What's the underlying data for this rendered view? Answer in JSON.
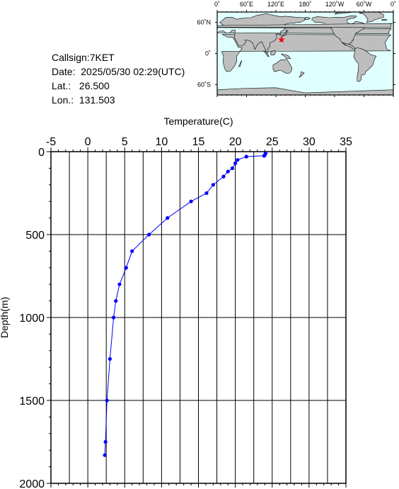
{
  "station": {
    "callsign_label": "Callsign:",
    "callsign": "7KET",
    "date_label": "Date:",
    "date": "2025/05/30 02:29(UTC)",
    "lat_label": "Lat.:",
    "lat": "26.500",
    "lon_label": "Lon.:",
    "lon": "131.503"
  },
  "map": {
    "lon_labels": [
      "0˚",
      "60˚E",
      "120˚E",
      "180˚",
      "120˚W",
      "60˚W",
      "0˚"
    ],
    "lat_labels": [
      "60˚N",
      "0˚",
      "60˚S"
    ],
    "marker": {
      "lon": 131.503,
      "lat": 26.5
    },
    "colors": {
      "ocean": "#e0ffff",
      "land": "#bebebe",
      "marker": "#ff0000"
    }
  },
  "chart_data": {
    "type": "line",
    "xlabel": "Temperature(C)",
    "ylabel": "Depth(m)",
    "xlim": [
      -5,
      35
    ],
    "ylim": [
      2000,
      0
    ],
    "x_ticks": [
      "-5",
      "0",
      "5",
      "10",
      "15",
      "20",
      "25",
      "30",
      "35"
    ],
    "y_ticks": [
      "0",
      "500",
      "1000",
      "1500",
      "2000"
    ],
    "x_axis_position": "top",
    "grid": true,
    "line_color": "#0000ff",
    "series": [
      {
        "temperature": [
          24.1,
          24.0,
          23.9,
          21.5,
          20.3,
          20.0,
          19.6,
          19.0,
          18.4,
          17.0,
          16.1,
          14.0,
          10.8,
          8.3,
          6.0,
          5.2,
          4.3,
          3.8,
          3.5,
          3.0,
          2.6,
          2.4,
          2.3
        ],
        "depth": [
          10,
          20,
          25,
          30,
          50,
          70,
          100,
          120,
          150,
          200,
          250,
          300,
          400,
          500,
          600,
          700,
          800,
          900,
          1000,
          1250,
          1500,
          1750,
          1830
        ]
      }
    ]
  }
}
